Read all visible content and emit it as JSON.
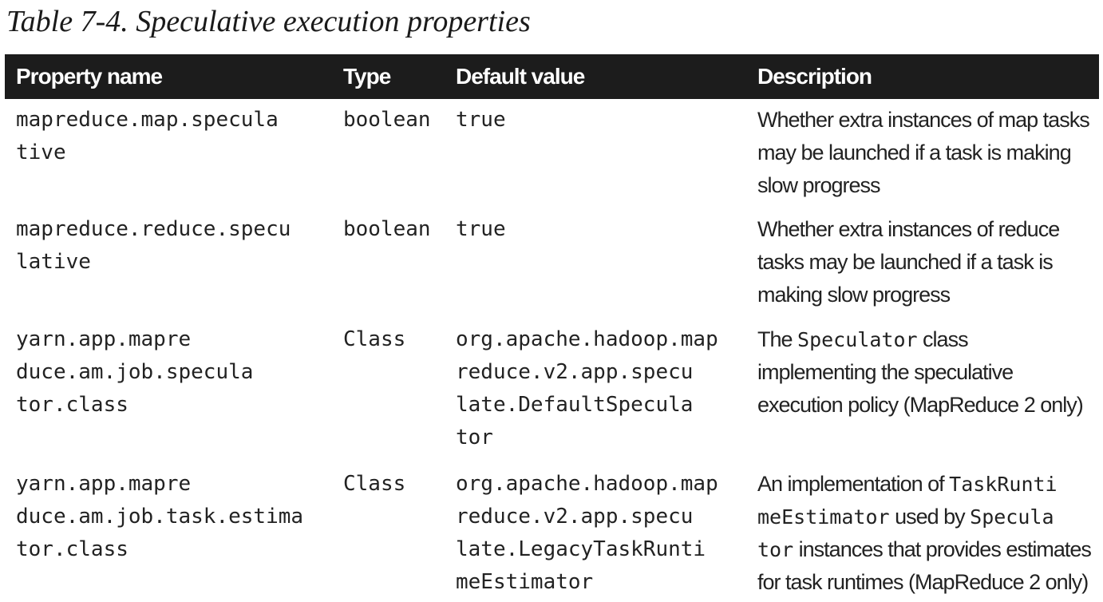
{
  "caption": "Table 7-4. Speculative execution properties",
  "table": {
    "headers": [
      "Property name",
      "Type",
      "Default value",
      "Description"
    ],
    "rows": [
      {
        "property": [
          "mapreduce.map.specula",
          "tive"
        ],
        "type": "boolean",
        "default": [
          "true"
        ],
        "description": [
          [
            {
              "text": "Whether extra instances of map tasks"
            }
          ],
          [
            {
              "text": "may be launched if a task is making"
            }
          ],
          [
            {
              "text": "slow progress"
            }
          ]
        ]
      },
      {
        "property": [
          "mapreduce.reduce.specu",
          "lative"
        ],
        "type": "boolean",
        "default": [
          "true"
        ],
        "description": [
          [
            {
              "text": "Whether extra instances of reduce"
            }
          ],
          [
            {
              "text": "tasks may be launched if a task is"
            }
          ],
          [
            {
              "text": "making slow progress"
            }
          ]
        ]
      },
      {
        "property": [
          "yarn.app.mapre",
          "duce.am.job.specula",
          "tor.class"
        ],
        "type": "Class",
        "default": [
          "org.apache.hadoop.map",
          "reduce.v2.app.specu",
          "late.DefaultSpecula",
          "tor"
        ],
        "description": [
          [
            {
              "text": "The "
            },
            {
              "text": "Speculator",
              "code": true
            },
            {
              "text": " class"
            }
          ],
          [
            {
              "text": "implementing the speculative"
            }
          ],
          [
            {
              "text": "execution policy (MapReduce 2 only)"
            }
          ]
        ]
      },
      {
        "property": [
          "yarn.app.mapre",
          "duce.am.job.task.estima",
          "tor.class"
        ],
        "type": "Class",
        "default": [
          "org.apache.hadoop.map",
          "reduce.v2.app.specu",
          "late.LegacyTaskRunti",
          "meEstimator"
        ],
        "description": [
          [
            {
              "text": "An implementation of "
            },
            {
              "text": "TaskRunti",
              "code": true
            }
          ],
          [
            {
              "text": "meEstimator",
              "code": true
            },
            {
              "text": " used by "
            },
            {
              "text": "Specula",
              "code": true
            }
          ],
          [
            {
              "text": "tor",
              "code": true
            },
            {
              "text": " instances that provides estimates"
            }
          ],
          [
            {
              "text": "for task runtimes (MapReduce 2 only)"
            }
          ]
        ]
      }
    ]
  }
}
